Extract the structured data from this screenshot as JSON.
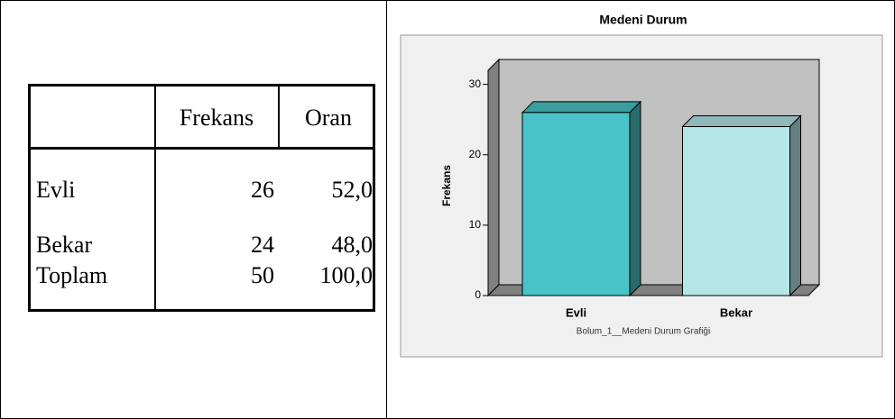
{
  "table": {
    "header": [
      "Frekans",
      "Oran"
    ],
    "rows": [
      [
        "Evli",
        "26",
        "52,0"
      ],
      [
        "Bekar",
        "24",
        "48,0"
      ],
      [
        "Toplam",
        "50",
        "100,0"
      ]
    ]
  },
  "chart_data": {
    "type": "bar",
    "title": "Medeni Durum",
    "y_label": "Frekans",
    "x_label": "Bolum_1__Medeni Durum Grafiği",
    "categories": [
      "Evli",
      "Bekar"
    ],
    "values": [
      26,
      24
    ],
    "colors": [
      "#48c4c8",
      "#b4e6e8"
    ],
    "ylim": [
      0,
      32
    ],
    "yticks": [
      0,
      10,
      20,
      30
    ]
  }
}
